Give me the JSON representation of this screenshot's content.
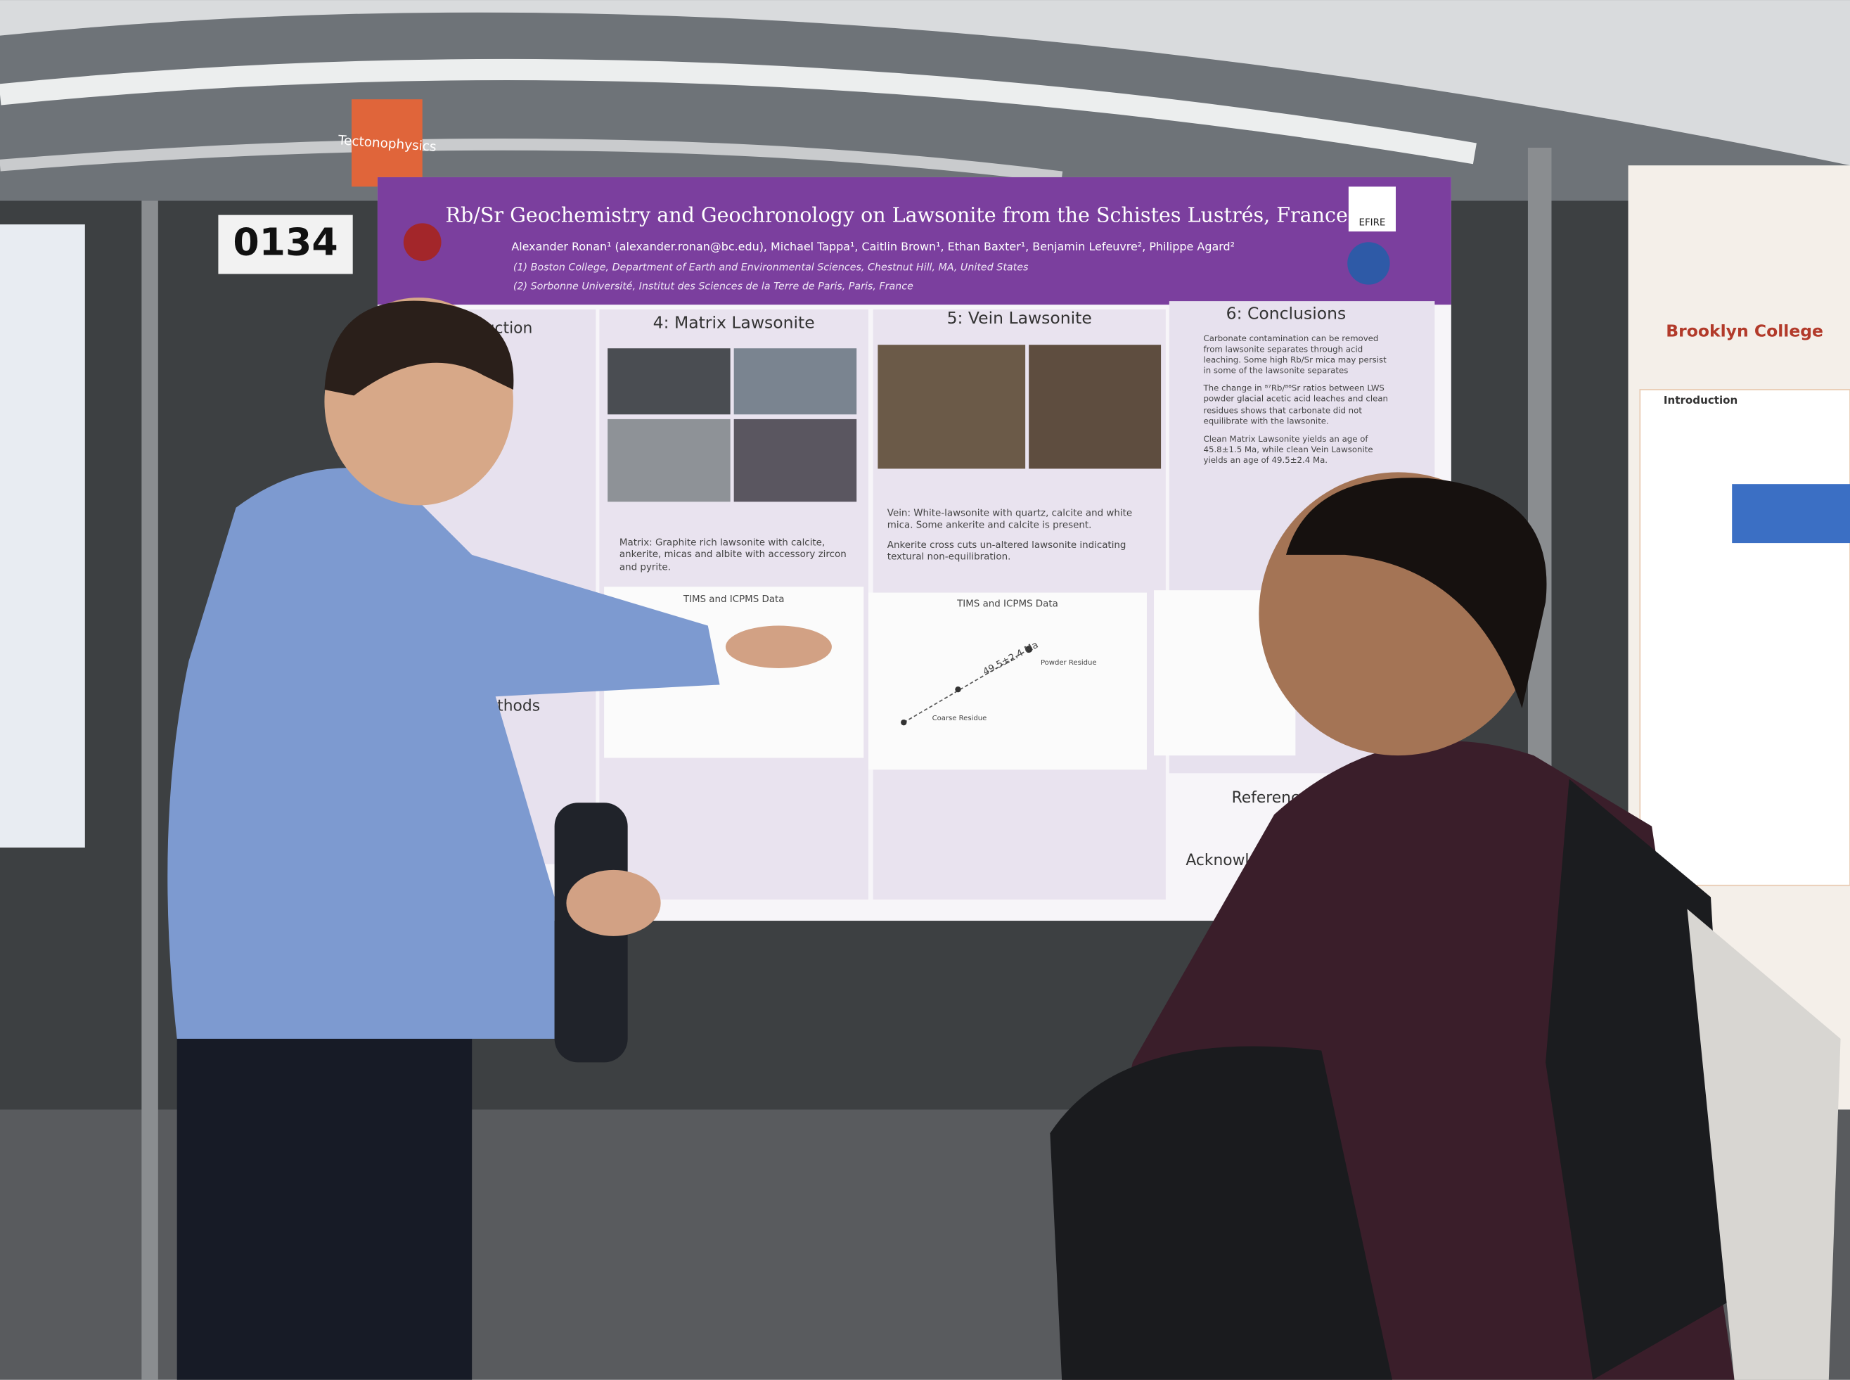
{
  "sign": "Tectonophysics",
  "booth_number": "0134",
  "poster": {
    "title": "Rb/Sr Geochemistry and Geochronology on Lawsonite from the Schistes Lustrés, France",
    "authors": "Alexander Ronan¹ (alexander.ronan@bc.edu), Michael Tappa¹, Caitlin Brown¹, Ethan Baxter¹, Benjamin Lefeuvre², Philippe Agard²",
    "affiliations": [
      "(1) Boston College, Department of Earth and Environmental Sciences, Chestnut Hill, MA, United States",
      "(2) Sorbonne Université, Institut des Sciences de la Terre de Paris, Paris, France"
    ],
    "logo": "EFIRE",
    "intro_heading": "Introduction",
    "methods_heading": "Methods",
    "matrix": {
      "heading": "4: Matrix Lawsonite",
      "bullets": [
        "Matrix: Graphite rich lawsonite with calcite, ankerite, micas and albite with accessory zircon and pyrite."
      ],
      "plot_title": "TIMS and ICPMS Data"
    },
    "vein": {
      "heading": "5: Vein Lawsonite",
      "bullets": [
        "Vein: White-lawsonite with quartz, calcite and white mica. Some ankerite and calcite is present.",
        "Ankerite cross cuts un-altered lawsonite indicating textural non-equilibration."
      ],
      "plot_title": "TIMS and ICPMS Data",
      "plot_annotations": [
        "49.5±2.4 Ma",
        "Powder Residue",
        "Coarse Residue"
      ]
    },
    "conclusions": {
      "heading": "6: Conclusions",
      "bullets": [
        "Carbonate contamination can be removed from lawsonite separates through acid leaching. Some high Rb/Sr mica may persist in some of the lawsonite separates",
        "The change in ⁸⁷Rb/⁸⁶Sr ratios between LWS powder glacial acetic acid leaches and clean residues shows that carbonate did not equilibrate with the lawsonite.",
        "Clean Matrix Lawsonite yields an age of 45.8±1.5 Ma, while clean Vein Lawsonite yields an age of 49.5±2.4 Ma."
      ]
    },
    "references_heading": "References",
    "acknowledgments_heading": "Acknowledgments"
  },
  "neighbor_poster": {
    "institution": "Brooklyn College",
    "heading": "Introduction"
  }
}
